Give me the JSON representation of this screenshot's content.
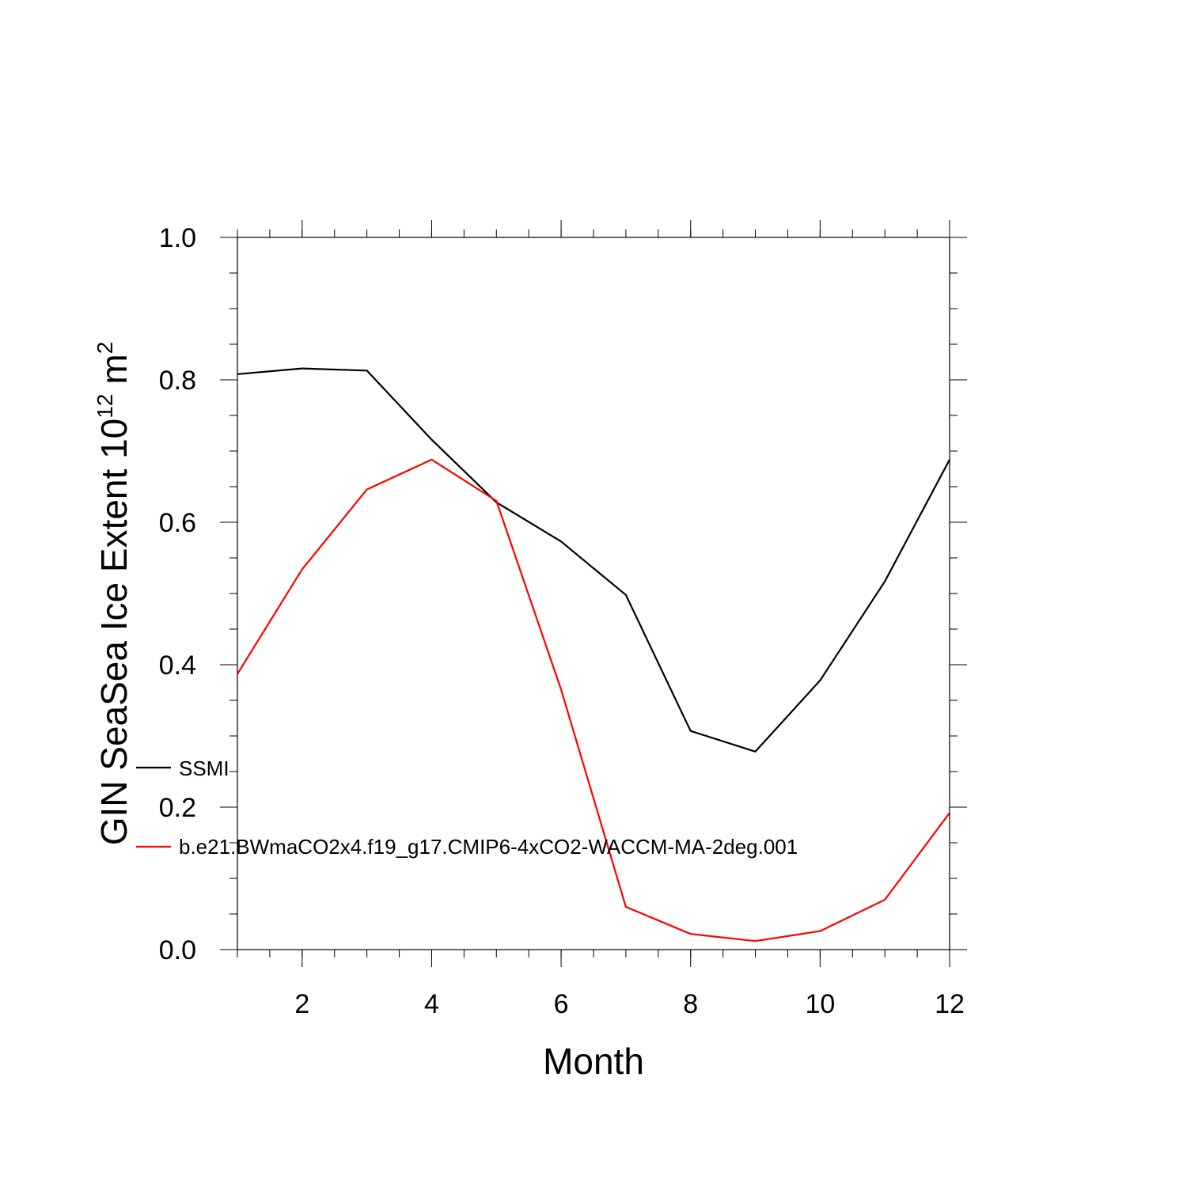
{
  "chart_data": {
    "type": "line",
    "xlabel": "Month",
    "ylabel": {
      "main": "GIN SeaSea Ice Extent 10",
      "exponent": "12",
      "unit": "m",
      "unit_exponent": "2"
    },
    "xlim": [
      1,
      12
    ],
    "ylim": [
      0,
      1
    ],
    "x_ticks": [
      2,
      4,
      6,
      8,
      10,
      12
    ],
    "x_tick_labels": [
      "2",
      "4",
      "6",
      "8",
      "10",
      "12"
    ],
    "y_ticks": [
      0,
      0.2,
      0.4,
      0.6,
      0.8,
      1.0
    ],
    "y_tick_labels": [
      "0.0",
      "0.2",
      "0.4",
      "0.6",
      "0.8",
      "1.0"
    ],
    "grid": false,
    "legend_position": "lower-left, overlapping plot",
    "x": [
      1,
      2,
      3,
      4,
      5,
      6,
      7,
      8,
      9,
      10,
      11,
      12
    ],
    "series": [
      {
        "name": "SSMI",
        "color": "#000000",
        "values": [
          0.808,
          0.816,
          0.813,
          0.716,
          0.628,
          0.573,
          0.498,
          0.307,
          0.278,
          0.378,
          0.517,
          0.688
        ]
      },
      {
        "name": "b.e21.BWmaCO2x4.f19_g17.CMIP6-4xCO2-WACCM-MA-2deg.001",
        "color": "#ff0000",
        "values": [
          0.387,
          0.534,
          0.646,
          0.688,
          0.63,
          0.365,
          0.06,
          0.022,
          0.012,
          0.026,
          0.07,
          0.192
        ]
      }
    ]
  }
}
